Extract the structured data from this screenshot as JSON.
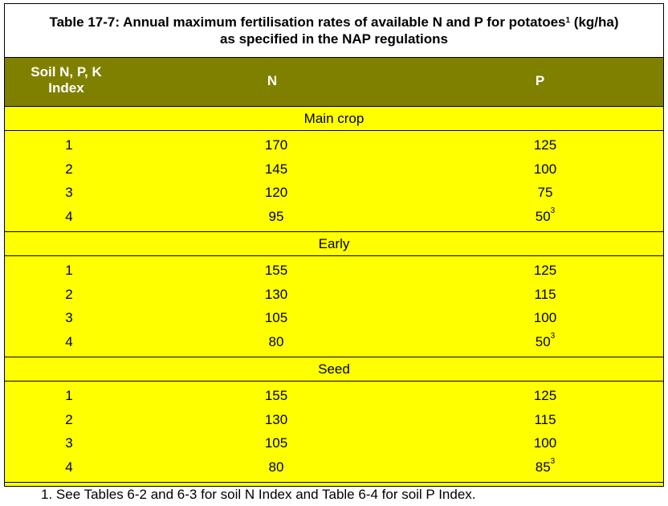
{
  "title": {
    "prefix": "Table 17-7:",
    "line1": " Annual maximum fertilisation rates of available N and P for potatoes",
    "sup": "1",
    "line1_end": " (kg/ha)",
    "line2": "as specified in the NAP regulations"
  },
  "header": {
    "col1_line1": "Soil N, P, K",
    "col1_line2": "Index",
    "col2": "N",
    "col3": "P"
  },
  "sections": [
    {
      "label": "Main crop",
      "rows": [
        {
          "index": "1",
          "n": "170",
          "p": "125",
          "sup": ""
        },
        {
          "index": "2",
          "n": "145",
          "p": "100",
          "sup": ""
        },
        {
          "index": "3",
          "n": "120",
          "p": "75",
          "sup": ""
        },
        {
          "index": "4",
          "n": "95",
          "p": "50",
          "sup": "3"
        }
      ]
    },
    {
      "label": "Early",
      "rows": [
        {
          "index": "1",
          "n": "155",
          "p": "125",
          "sup": ""
        },
        {
          "index": "2",
          "n": "130",
          "p": "115",
          "sup": ""
        },
        {
          "index": "3",
          "n": "105",
          "p": "100",
          "sup": ""
        },
        {
          "index": "4",
          "n": "80",
          "p": "50",
          "sup": "3"
        }
      ]
    },
    {
      "label": "Seed",
      "rows": [
        {
          "index": "1",
          "n": "155",
          "p": "125",
          "sup": ""
        },
        {
          "index": "2",
          "n": "130",
          "p": "115",
          "sup": ""
        },
        {
          "index": "3",
          "n": "105",
          "p": "100",
          "sup": ""
        },
        {
          "index": "4",
          "n": "80",
          "p": "85",
          "sup": "3"
        }
      ]
    }
  ],
  "footnote": "1.   See Tables 6-2 and 6-3 for soil N Index and Table 6-4 for soil P Index.",
  "colors": {
    "header_bg": "#808000",
    "body_bg": "#ffff00"
  }
}
